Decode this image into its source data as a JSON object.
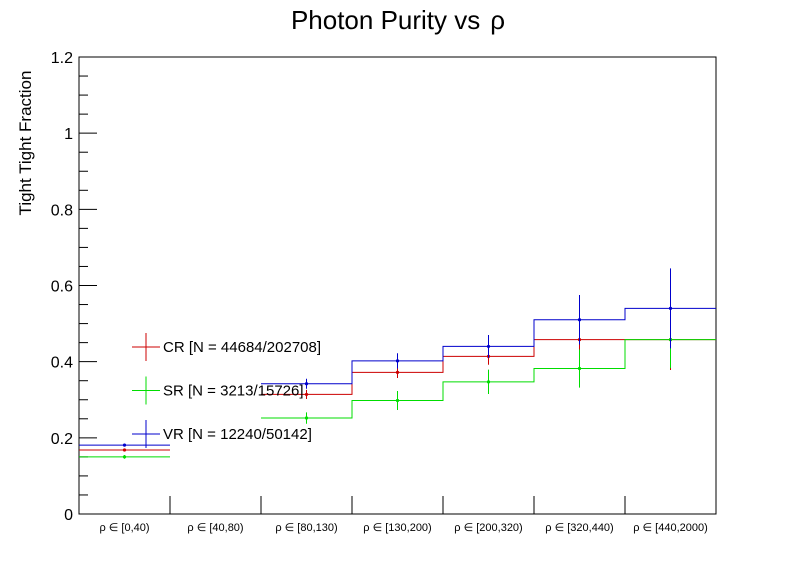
{
  "chart_data": {
    "type": "step",
    "title": "Photon Purity vs",
    "title_symbol": "ρ",
    "xlabel": "",
    "ylabel": "Tight Tight Fraction",
    "ylim": [
      0,
      1.2
    ],
    "y_ticks": [
      "0",
      "0.2",
      "0.4",
      "0.6",
      "0.8",
      "1",
      "1.2"
    ],
    "categories": [
      "ρ ∈ [0,40)",
      "ρ ∈ [40,80)",
      "ρ ∈ [80,130)",
      "ρ ∈ [130,200)",
      "ρ ∈ [200,320)",
      "ρ ∈ [320,440)",
      "ρ ∈ [440,2000)"
    ],
    "series": [
      {
        "name": "CR [N = 44684/202708]",
        "color": "#cc0000",
        "values": [
          0.168,
          null,
          0.314,
          0.372,
          0.414,
          0.458,
          0.458
        ],
        "errors": [
          0.003,
          null,
          0.012,
          0.015,
          0.022,
          0.045,
          0.08
        ]
      },
      {
        "name": "SR [N = 3213/15726]",
        "color": "#00dd00",
        "values": [
          0.15,
          null,
          0.252,
          0.298,
          0.347,
          0.382,
          0.458
        ],
        "errors": [
          0.005,
          null,
          0.015,
          0.025,
          0.032,
          0.05,
          0.075
        ]
      },
      {
        "name": "VR [N = 12240/50142]",
        "color": "#0000cc",
        "values": [
          0.181,
          null,
          0.342,
          0.402,
          0.44,
          0.51,
          0.54
        ],
        "errors": [
          0.004,
          null,
          0.013,
          0.02,
          0.03,
          0.065,
          0.105
        ]
      }
    ]
  }
}
